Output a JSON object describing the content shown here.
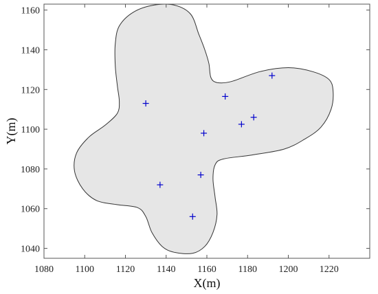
{
  "chart_data": {
    "type": "scatter",
    "title": "",
    "xlabel": "X(m)",
    "ylabel": "Y(m)",
    "xlim": [
      1080,
      1240
    ],
    "ylim": [
      1035,
      1163
    ],
    "x_ticks": [
      1080,
      1100,
      1120,
      1140,
      1160,
      1180,
      1200,
      1220
    ],
    "y_ticks": [
      1040,
      1060,
      1080,
      1100,
      1120,
      1140,
      1160
    ],
    "x_tick_labels": [
      "1080",
      "1100",
      "1120",
      "1140",
      "1160",
      "1180",
      "1200",
      "1220"
    ],
    "y_tick_labels": [
      "1040",
      "1060",
      "1080",
      "1100",
      "1120",
      "1140",
      "1160"
    ],
    "grid": false,
    "region": {
      "fill": "#e6e6e6",
      "stroke": "#333333",
      "boundary": [
        [
          1144,
          1162.5
        ],
        [
          1152,
          1158
        ],
        [
          1156,
          1148
        ],
        [
          1159,
          1140
        ],
        [
          1161,
          1133
        ],
        [
          1162,
          1126
        ],
        [
          1165,
          1123.5
        ],
        [
          1172,
          1124
        ],
        [
          1186,
          1129
        ],
        [
          1200,
          1131
        ],
        [
          1212,
          1129
        ],
        [
          1220,
          1125
        ],
        [
          1222,
          1119
        ],
        [
          1221,
          1110
        ],
        [
          1216,
          1101
        ],
        [
          1208,
          1095
        ],
        [
          1198,
          1090
        ],
        [
          1182,
          1087
        ],
        [
          1168,
          1085
        ],
        [
          1164,
          1082
        ],
        [
          1163,
          1075
        ],
        [
          1164,
          1066
        ],
        [
          1165,
          1057
        ],
        [
          1163,
          1048
        ],
        [
          1159,
          1041
        ],
        [
          1153,
          1037.5
        ],
        [
          1144,
          1038
        ],
        [
          1138,
          1041
        ],
        [
          1133,
          1048
        ],
        [
          1130,
          1056
        ],
        [
          1126,
          1060.5
        ],
        [
          1116,
          1062
        ],
        [
          1106,
          1064
        ],
        [
          1099,
          1070
        ],
        [
          1095,
          1079
        ],
        [
          1096,
          1088
        ],
        [
          1102,
          1096
        ],
        [
          1110,
          1102
        ],
        [
          1116,
          1108
        ],
        [
          1117,
          1114
        ],
        [
          1116,
          1122
        ],
        [
          1115,
          1132
        ],
        [
          1115,
          1143
        ],
        [
          1117,
          1152
        ],
        [
          1124,
          1159
        ],
        [
          1134,
          1162.5
        ]
      ]
    },
    "series": [
      {
        "marker": "+",
        "color": "#0000cc",
        "points": [
          {
            "x": 1192,
            "y": 1127
          },
          {
            "x": 1169,
            "y": 1116.5
          },
          {
            "x": 1130,
            "y": 1113
          },
          {
            "x": 1183,
            "y": 1106
          },
          {
            "x": 1177,
            "y": 1102.5
          },
          {
            "x": 1158.5,
            "y": 1098
          },
          {
            "x": 1157,
            "y": 1077
          },
          {
            "x": 1137,
            "y": 1072
          },
          {
            "x": 1153,
            "y": 1056
          }
        ]
      }
    ]
  }
}
